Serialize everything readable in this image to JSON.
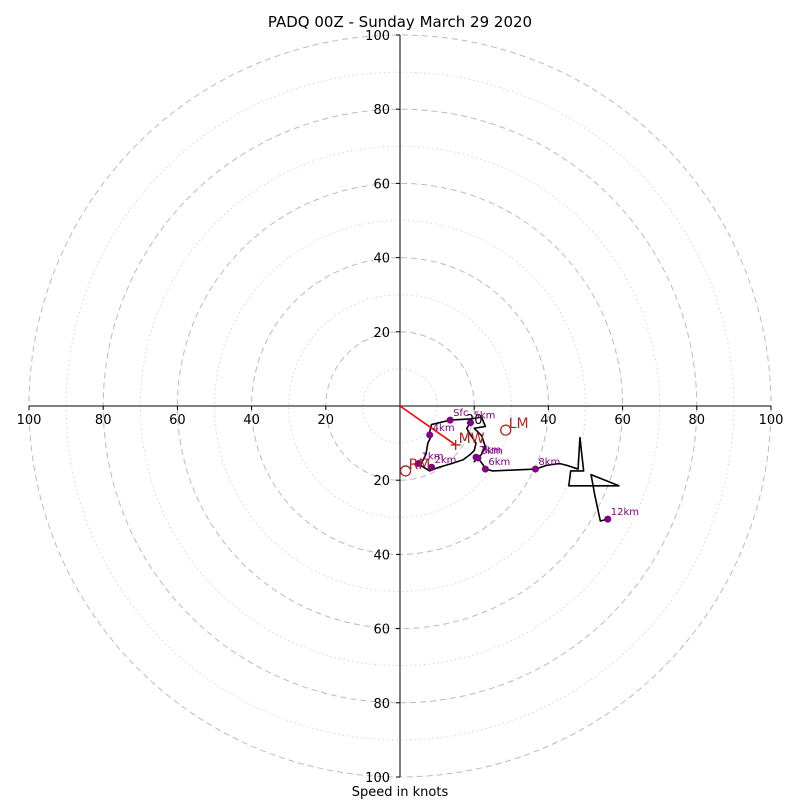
{
  "chart_data": {
    "type": "hodograph",
    "title": "PADQ 00Z - Sunday March 29 2020",
    "xlabel": "Speed in knots",
    "ring_max": 100,
    "ring_step_major": 20,
    "ring_step_minor": 10,
    "axis_tick_labels": [
      "100",
      "80",
      "60",
      "40",
      "20",
      "20",
      "40",
      "60",
      "80",
      "100"
    ],
    "axis_tick_values": [
      -100,
      -80,
      -60,
      -40,
      -20,
      20,
      40,
      60,
      80,
      100
    ],
    "grid": true,
    "colors": {
      "trace": "#000000",
      "points": "#800080",
      "motion": "#b22222",
      "shear": "#ff0000",
      "grid": "#bbbbbb"
    },
    "trace": [
      [
        13.5,
        -3.8
      ],
      [
        19.0,
        -3.5
      ],
      [
        22.0,
        -3.0
      ],
      [
        23.0,
        -5.5
      ],
      [
        20.0,
        -6.0
      ],
      [
        22.0,
        -8.0
      ],
      [
        23.0,
        -11.0
      ],
      [
        22.0,
        -13.0
      ],
      [
        20.0,
        -15.0
      ],
      [
        21.0,
        -14.0
      ],
      [
        22.5,
        -16.0
      ],
      [
        23.0,
        -17.0
      ],
      [
        25.0,
        -17.5
      ],
      [
        32.0,
        -17.2
      ],
      [
        36.5,
        -17.0
      ],
      [
        39.5,
        -16.0
      ],
      [
        43.0,
        -15.5
      ],
      [
        45.0,
        -16.0
      ],
      [
        48.0,
        -17.0
      ],
      [
        48.5,
        -8.5
      ],
      [
        49.5,
        -17.5
      ],
      [
        46.0,
        -17.5
      ],
      [
        45.5,
        -21.5
      ],
      [
        55.0,
        -21.5
      ],
      [
        59.0,
        -21.5
      ],
      [
        51.5,
        -18.5
      ],
      [
        52.5,
        -24.0
      ],
      [
        54.0,
        -31.0
      ],
      [
        56.0,
        -30.5
      ]
    ],
    "trace_lower": [
      [
        13.5,
        -3.8
      ],
      [
        8.5,
        -5.0
      ],
      [
        8.0,
        -7.0
      ],
      [
        8.5,
        -8.0
      ],
      [
        7.5,
        -10.0
      ],
      [
        7.0,
        -13.0
      ],
      [
        5.5,
        -16.0
      ],
      [
        8.0,
        -17.5
      ],
      [
        10.5,
        -16.5
      ],
      [
        14.0,
        -15.5
      ],
      [
        17.0,
        -14.5
      ],
      [
        19.0,
        -13.0
      ],
      [
        20.0,
        -12.0
      ],
      [
        20.5,
        -10.0
      ],
      [
        19.5,
        -8.5
      ],
      [
        18.5,
        -7.0
      ],
      [
        18.0,
        -6.0
      ],
      [
        19.0,
        -4.5
      ]
    ],
    "height_markers": [
      {
        "label": "Sfc",
        "u": 13.5,
        "v": -3.8
      },
      {
        "label": "5km",
        "u": 19.0,
        "v": -4.5
      },
      {
        "label": "4km",
        "u": 8.0,
        "v": -7.8
      },
      {
        "label": "1km",
        "u": 5.0,
        "v": -15.5
      },
      {
        "label": "2km",
        "u": 8.5,
        "v": -16.5
      },
      {
        "label": "3km",
        "u": 21.0,
        "v": -14.0
      },
      {
        "label": "7km",
        "u": 20.5,
        "v": -13.8
      },
      {
        "label": "6km",
        "u": 23.0,
        "v": -17.0
      },
      {
        "label": "8km",
        "u": 36.5,
        "v": -17.0
      },
      {
        "label": "12km",
        "u": 56.0,
        "v": -30.5
      }
    ],
    "storm_motion": [
      {
        "label": "LM",
        "u": 28.5,
        "v": -6.5
      },
      {
        "label": "RM",
        "u": 1.5,
        "v": -17.5
      }
    ],
    "mean_wind": {
      "label": "MW",
      "u": 15.0,
      "v": -10.5
    },
    "shear_vector": {
      "label": "",
      "from": [
        0,
        0
      ],
      "to": [
        15.0,
        -10.5
      ]
    }
  }
}
